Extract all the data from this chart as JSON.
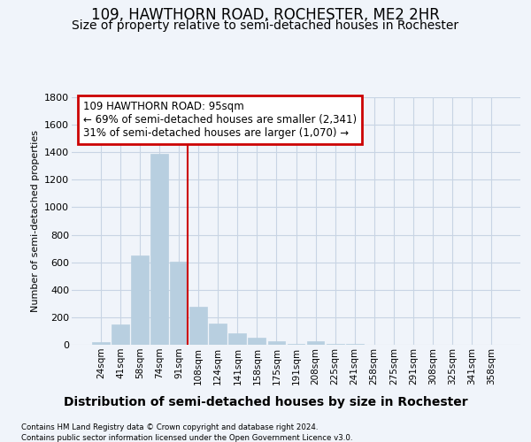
{
  "title1": "109, HAWTHORN ROAD, ROCHESTER, ME2 2HR",
  "title2": "Size of property relative to semi-detached houses in Rochester",
  "xlabel": "Distribution of semi-detached houses by size in Rochester",
  "ylabel": "Number of semi-detached properties",
  "categories": [
    "24sqm",
    "41sqm",
    "58sqm",
    "74sqm",
    "91sqm",
    "108sqm",
    "124sqm",
    "141sqm",
    "158sqm",
    "175sqm",
    "191sqm",
    "208sqm",
    "225sqm",
    "241sqm",
    "258sqm",
    "275sqm",
    "291sqm",
    "308sqm",
    "325sqm",
    "341sqm",
    "358sqm"
  ],
  "values": [
    20,
    148,
    650,
    1390,
    605,
    275,
    155,
    85,
    50,
    25,
    8,
    25,
    8,
    5,
    3,
    3,
    3,
    3,
    3,
    3,
    3
  ],
  "bar_color": "#b8cfe0",
  "bar_edge_color": "#b8cfe0",
  "grid_color": "#c8d4e4",
  "annotation_line1": "109 HAWTHORN ROAD: 95sqm",
  "annotation_line2": "← 69% of semi-detached houses are smaller (2,341)",
  "annotation_line3": "31% of semi-detached houses are larger (1,070) →",
  "annotation_box_color": "#ffffff",
  "annotation_box_edge_color": "#cc0000",
  "vline_color": "#cc0000",
  "ylim": [
    0,
    1800
  ],
  "yticks": [
    0,
    200,
    400,
    600,
    800,
    1000,
    1200,
    1400,
    1600,
    1800
  ],
  "footer1": "Contains HM Land Registry data © Crown copyright and database right 2024.",
  "footer2": "Contains public sector information licensed under the Open Government Licence v3.0.",
  "bg_color": "#f0f4fa",
  "title1_fontsize": 12,
  "title2_fontsize": 10,
  "xlabel_fontsize": 10,
  "ylabel_fontsize": 8
}
